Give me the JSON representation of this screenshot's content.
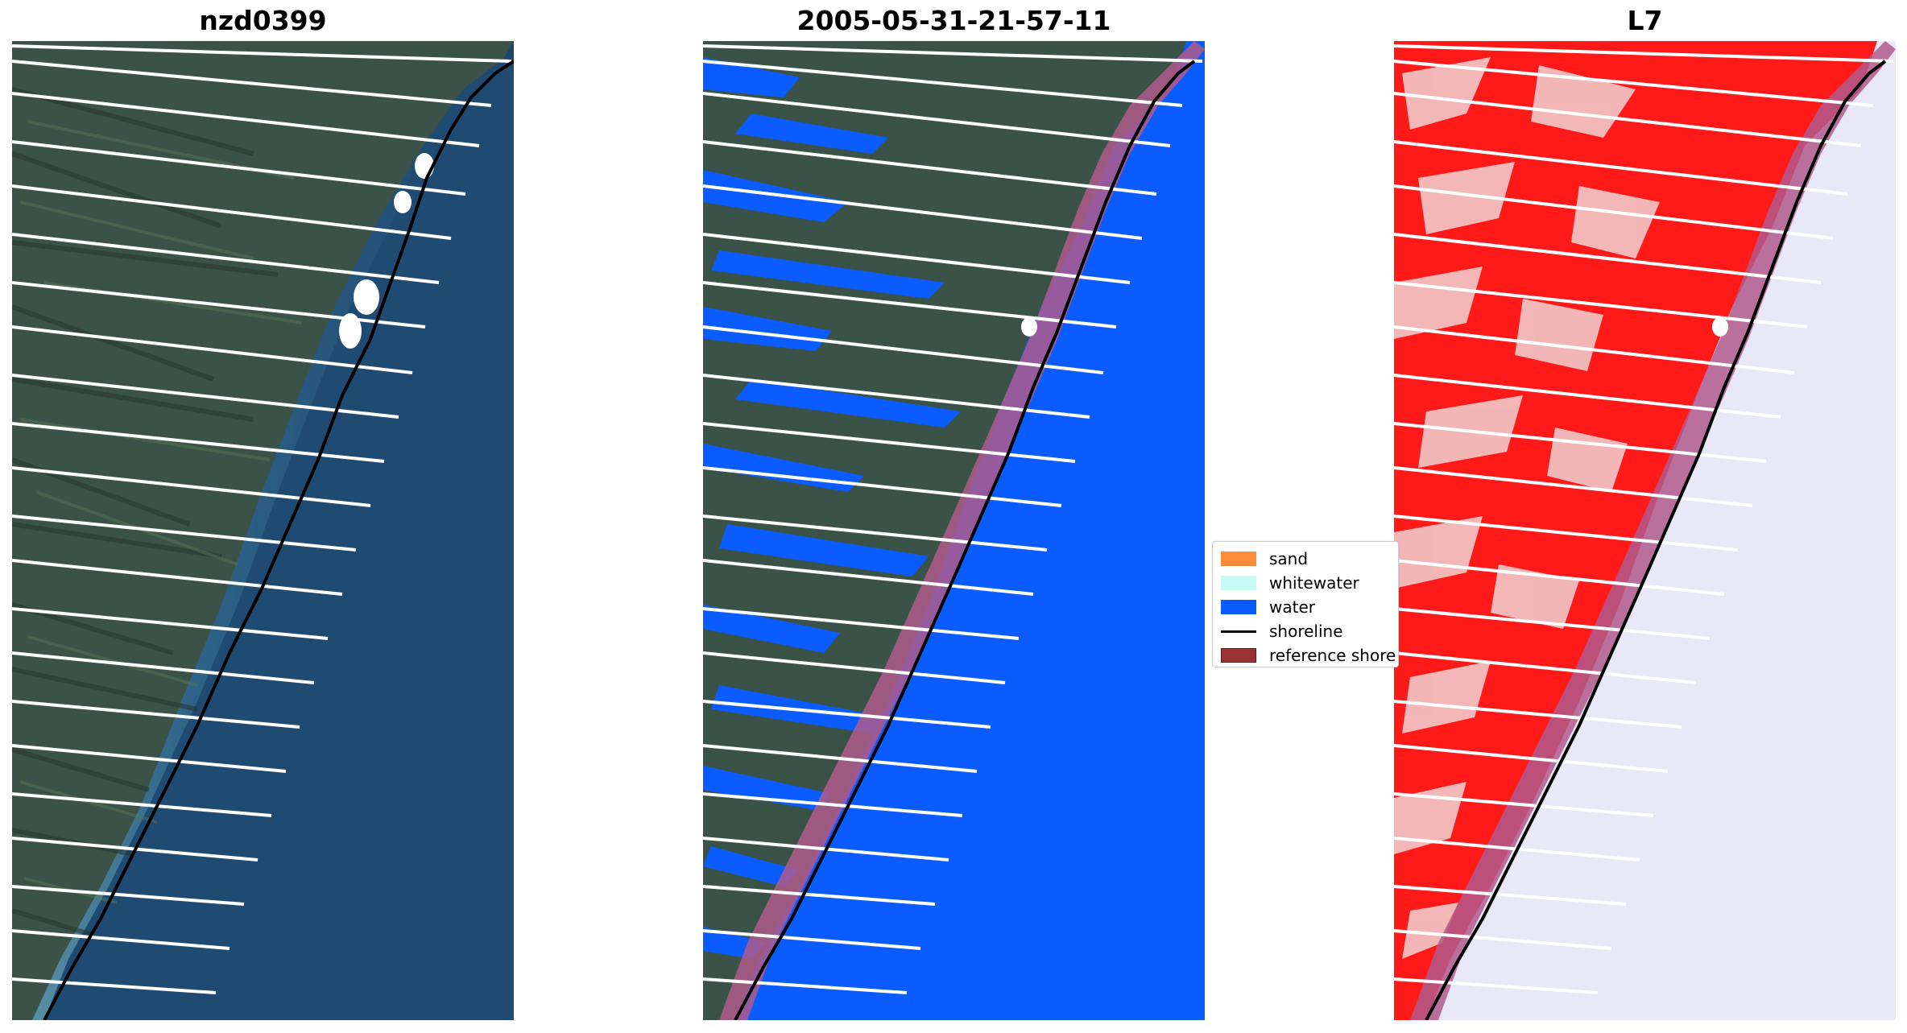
{
  "panels": [
    {
      "title": "nzd0399"
    },
    {
      "title": "2005-05-31-21-57-11"
    },
    {
      "title": "L7"
    }
  ],
  "legend": {
    "items": [
      {
        "label": "sand",
        "color": "#ff8c3a",
        "kind": "patch"
      },
      {
        "label": "whitewater",
        "color": "#c8fbf4",
        "kind": "patch"
      },
      {
        "label": "water",
        "color": "#0a5cff",
        "kind": "patch"
      },
      {
        "label": "shoreline",
        "color": "#000000",
        "kind": "line"
      },
      {
        "label": "reference shore",
        "color": "#9b3333",
        "kind": "patch"
      }
    ]
  },
  "colors": {
    "land_rgb": "#3a5248",
    "sea_rgb": "#1f4a72",
    "surf_rgb": "#6f9fb0",
    "classified_water": "#0a5cff",
    "index_land": "#ff1a1a",
    "index_water": "#e8e8f6",
    "reference_buffer": "#b05a8c",
    "transect": "#ffffff",
    "shoreline": "#000000"
  }
}
